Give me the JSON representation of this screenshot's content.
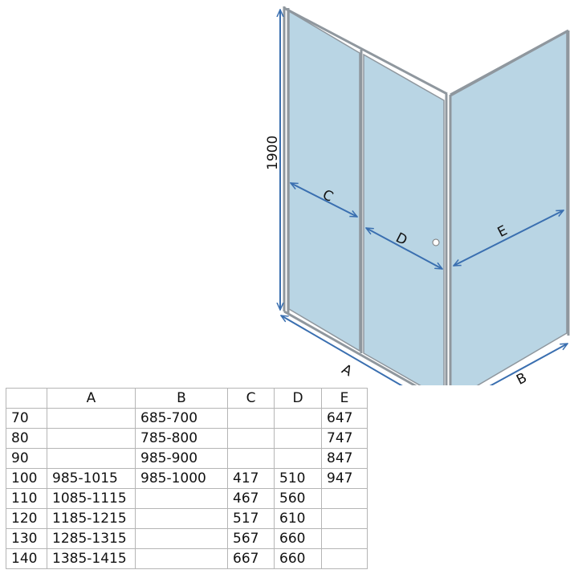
{
  "diagram": {
    "height_label": "1900",
    "labels": {
      "A": "A",
      "B": "B",
      "C": "C",
      "D": "D",
      "E": "E"
    },
    "colors": {
      "glass": "#b9d5e4",
      "frame": "#9aa3aa",
      "arrow": "#3a6fb0"
    }
  },
  "table": {
    "headers": [
      "",
      "A",
      "B",
      "C",
      "D",
      "E"
    ],
    "rows": [
      [
        "70",
        "",
        "685-700",
        "",
        "",
        "647"
      ],
      [
        "80",
        "",
        "785-800",
        "",
        "",
        "747"
      ],
      [
        "90",
        "",
        "985-900",
        "",
        "",
        "847"
      ],
      [
        "100",
        "985-1015",
        "985-1000",
        "417",
        "510",
        "947"
      ],
      [
        "110",
        "1085-1115",
        "",
        "467",
        "560",
        ""
      ],
      [
        "120",
        "1185-1215",
        "",
        "517",
        "610",
        ""
      ],
      [
        "130",
        "1285-1315",
        "",
        "567",
        "660",
        ""
      ],
      [
        "140",
        "1385-1415",
        "",
        "667",
        "660",
        ""
      ]
    ]
  }
}
